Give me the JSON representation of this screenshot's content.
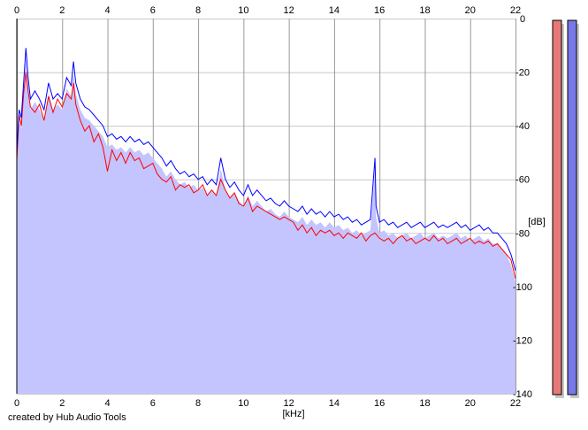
{
  "credit": "created by Hub Audio Tools",
  "chart_data": {
    "type": "line",
    "title": "",
    "xlabel": "[kHz]",
    "ylabel": "[dB]",
    "xlim": [
      0,
      22
    ],
    "ylim": [
      -140,
      0
    ],
    "x_ticks": [
      0,
      2,
      4,
      6,
      8,
      10,
      12,
      14,
      16,
      18,
      20,
      22
    ],
    "y_ticks": [
      0,
      -20,
      -40,
      -60,
      -80,
      -100,
      -120,
      -140
    ],
    "grid": true,
    "fill_color": "#c4c4ff",
    "series": [
      {
        "color": "#ff0000",
        "points": [
          [
            0.0,
            -53
          ],
          [
            0.1,
            -36
          ],
          [
            0.2,
            -40
          ],
          [
            0.3,
            -28
          ],
          [
            0.4,
            -20
          ],
          [
            0.5,
            -27
          ],
          [
            0.6,
            -33
          ],
          [
            0.8,
            -35
          ],
          [
            1.0,
            -32
          ],
          [
            1.2,
            -38
          ],
          [
            1.4,
            -29
          ],
          [
            1.6,
            -35
          ],
          [
            1.8,
            -30
          ],
          [
            2.0,
            -33
          ],
          [
            2.2,
            -28
          ],
          [
            2.4,
            -30
          ],
          [
            2.5,
            -24
          ],
          [
            2.6,
            -32
          ],
          [
            2.8,
            -38
          ],
          [
            3.0,
            -42
          ],
          [
            3.2,
            -40
          ],
          [
            3.4,
            -46
          ],
          [
            3.6,
            -43
          ],
          [
            3.8,
            -48
          ],
          [
            4.0,
            -57
          ],
          [
            4.2,
            -49
          ],
          [
            4.4,
            -53
          ],
          [
            4.6,
            -50
          ],
          [
            4.8,
            -54
          ],
          [
            5.0,
            -50
          ],
          [
            5.2,
            -53
          ],
          [
            5.4,
            -52
          ],
          [
            5.6,
            -56
          ],
          [
            5.8,
            -55
          ],
          [
            6.0,
            -54
          ],
          [
            6.2,
            -58
          ],
          [
            6.4,
            -60
          ],
          [
            6.6,
            -61
          ],
          [
            6.8,
            -59
          ],
          [
            7.0,
            -64
          ],
          [
            7.2,
            -62
          ],
          [
            7.4,
            -63
          ],
          [
            7.6,
            -62
          ],
          [
            7.8,
            -65
          ],
          [
            8.0,
            -64
          ],
          [
            8.2,
            -62
          ],
          [
            8.4,
            -66
          ],
          [
            8.6,
            -64
          ],
          [
            8.8,
            -66
          ],
          [
            9.0,
            -60
          ],
          [
            9.2,
            -64
          ],
          [
            9.4,
            -67
          ],
          [
            9.6,
            -65
          ],
          [
            9.8,
            -69
          ],
          [
            10.0,
            -70
          ],
          [
            10.2,
            -67
          ],
          [
            10.4,
            -72
          ],
          [
            10.6,
            -70
          ],
          [
            10.8,
            -71
          ],
          [
            11.0,
            -72
          ],
          [
            11.2,
            -73
          ],
          [
            11.4,
            -74
          ],
          [
            11.6,
            -75
          ],
          [
            11.8,
            -74
          ],
          [
            12.0,
            -75
          ],
          [
            12.2,
            -76
          ],
          [
            12.4,
            -79
          ],
          [
            12.6,
            -77
          ],
          [
            12.8,
            -80
          ],
          [
            13.0,
            -78
          ],
          [
            13.2,
            -81
          ],
          [
            13.4,
            -79
          ],
          [
            13.6,
            -80
          ],
          [
            13.8,
            -79
          ],
          [
            14.0,
            -81
          ],
          [
            14.2,
            -80
          ],
          [
            14.4,
            -82
          ],
          [
            14.6,
            -80
          ],
          [
            14.8,
            -81
          ],
          [
            15.0,
            -82
          ],
          [
            15.2,
            -80
          ],
          [
            15.4,
            -83
          ],
          [
            15.6,
            -81
          ],
          [
            15.8,
            -80
          ],
          [
            16.0,
            -82
          ],
          [
            16.2,
            -83
          ],
          [
            16.4,
            -82
          ],
          [
            16.6,
            -84
          ],
          [
            16.8,
            -82
          ],
          [
            17.0,
            -81
          ],
          [
            17.2,
            -83
          ],
          [
            17.4,
            -82
          ],
          [
            17.6,
            -84
          ],
          [
            17.8,
            -83
          ],
          [
            18.0,
            -82
          ],
          [
            18.2,
            -83
          ],
          [
            18.4,
            -81
          ],
          [
            18.6,
            -83
          ],
          [
            18.8,
            -82
          ],
          [
            19.0,
            -84
          ],
          [
            19.2,
            -83
          ],
          [
            19.4,
            -82
          ],
          [
            19.6,
            -84
          ],
          [
            19.8,
            -83
          ],
          [
            20.0,
            -82
          ],
          [
            20.2,
            -84
          ],
          [
            20.4,
            -83
          ],
          [
            20.6,
            -84
          ],
          [
            20.8,
            -83
          ],
          [
            21.0,
            -85
          ],
          [
            21.2,
            -84
          ],
          [
            21.4,
            -86
          ],
          [
            21.6,
            -88
          ],
          [
            21.8,
            -90
          ],
          [
            22.0,
            -97
          ]
        ]
      },
      {
        "color": "#0000ff",
        "points": [
          [
            0.0,
            -50
          ],
          [
            0.1,
            -34
          ],
          [
            0.2,
            -37
          ],
          [
            0.3,
            -24
          ],
          [
            0.4,
            -11
          ],
          [
            0.5,
            -22
          ],
          [
            0.6,
            -30
          ],
          [
            0.8,
            -27
          ],
          [
            1.0,
            -30
          ],
          [
            1.2,
            -34
          ],
          [
            1.4,
            -24
          ],
          [
            1.6,
            -30
          ],
          [
            1.8,
            -28
          ],
          [
            2.0,
            -30
          ],
          [
            2.2,
            -22
          ],
          [
            2.4,
            -25
          ],
          [
            2.5,
            -16
          ],
          [
            2.6,
            -24
          ],
          [
            2.8,
            -30
          ],
          [
            3.0,
            -33
          ],
          [
            3.2,
            -34
          ],
          [
            3.4,
            -36
          ],
          [
            3.6,
            -38
          ],
          [
            3.8,
            -40
          ],
          [
            4.0,
            -44
          ],
          [
            4.2,
            -43
          ],
          [
            4.4,
            -45
          ],
          [
            4.6,
            -44
          ],
          [
            4.8,
            -46
          ],
          [
            5.0,
            -44
          ],
          [
            5.2,
            -46
          ],
          [
            5.4,
            -45
          ],
          [
            5.6,
            -47
          ],
          [
            5.8,
            -46
          ],
          [
            6.0,
            -48
          ],
          [
            6.2,
            -50
          ],
          [
            6.4,
            -52
          ],
          [
            6.6,
            -55
          ],
          [
            6.8,
            -53
          ],
          [
            7.0,
            -56
          ],
          [
            7.2,
            -58
          ],
          [
            7.4,
            -57
          ],
          [
            7.6,
            -59
          ],
          [
            7.8,
            -58
          ],
          [
            8.0,
            -60
          ],
          [
            8.2,
            -59
          ],
          [
            8.4,
            -62
          ],
          [
            8.6,
            -60
          ],
          [
            8.8,
            -62
          ],
          [
            9.0,
            -52
          ],
          [
            9.2,
            -60
          ],
          [
            9.4,
            -63
          ],
          [
            9.6,
            -61
          ],
          [
            9.8,
            -64
          ],
          [
            10.0,
            -66
          ],
          [
            10.2,
            -62
          ],
          [
            10.4,
            -66
          ],
          [
            10.6,
            -64
          ],
          [
            10.8,
            -66
          ],
          [
            11.0,
            -68
          ],
          [
            11.2,
            -67
          ],
          [
            11.4,
            -69
          ],
          [
            11.6,
            -70
          ],
          [
            11.8,
            -68
          ],
          [
            12.0,
            -70
          ],
          [
            12.2,
            -71
          ],
          [
            12.4,
            -72
          ],
          [
            12.6,
            -70
          ],
          [
            12.8,
            -73
          ],
          [
            13.0,
            -71
          ],
          [
            13.2,
            -73
          ],
          [
            13.4,
            -72
          ],
          [
            13.6,
            -74
          ],
          [
            13.8,
            -72
          ],
          [
            14.0,
            -74
          ],
          [
            14.2,
            -73
          ],
          [
            14.4,
            -75
          ],
          [
            14.6,
            -74
          ],
          [
            14.8,
            -76
          ],
          [
            15.0,
            -75
          ],
          [
            15.2,
            -77
          ],
          [
            15.4,
            -76
          ],
          [
            15.6,
            -75
          ],
          [
            15.8,
            -52
          ],
          [
            15.85,
            -70
          ],
          [
            16.0,
            -76
          ],
          [
            16.2,
            -75
          ],
          [
            16.4,
            -77
          ],
          [
            16.6,
            -76
          ],
          [
            16.8,
            -78
          ],
          [
            17.0,
            -77
          ],
          [
            17.2,
            -76
          ],
          [
            17.4,
            -78
          ],
          [
            17.6,
            -77
          ],
          [
            17.8,
            -76
          ],
          [
            18.0,
            -78
          ],
          [
            18.2,
            -77
          ],
          [
            18.4,
            -76
          ],
          [
            18.6,
            -78
          ],
          [
            18.8,
            -77
          ],
          [
            19.0,
            -78
          ],
          [
            19.2,
            -77
          ],
          [
            19.4,
            -76
          ],
          [
            19.6,
            -78
          ],
          [
            19.8,
            -77
          ],
          [
            20.0,
            -79
          ],
          [
            20.2,
            -78
          ],
          [
            20.4,
            -77
          ],
          [
            20.6,
            -79
          ],
          [
            20.8,
            -78
          ],
          [
            21.0,
            -80
          ],
          [
            21.2,
            -80
          ],
          [
            21.4,
            -82
          ],
          [
            21.6,
            -84
          ],
          [
            21.8,
            -88
          ],
          [
            22.0,
            -94
          ]
        ]
      }
    ]
  },
  "level_meters": [
    {
      "color": "#e87878",
      "level": 1.0
    },
    {
      "color": "#7878e8",
      "level": 1.0
    }
  ]
}
